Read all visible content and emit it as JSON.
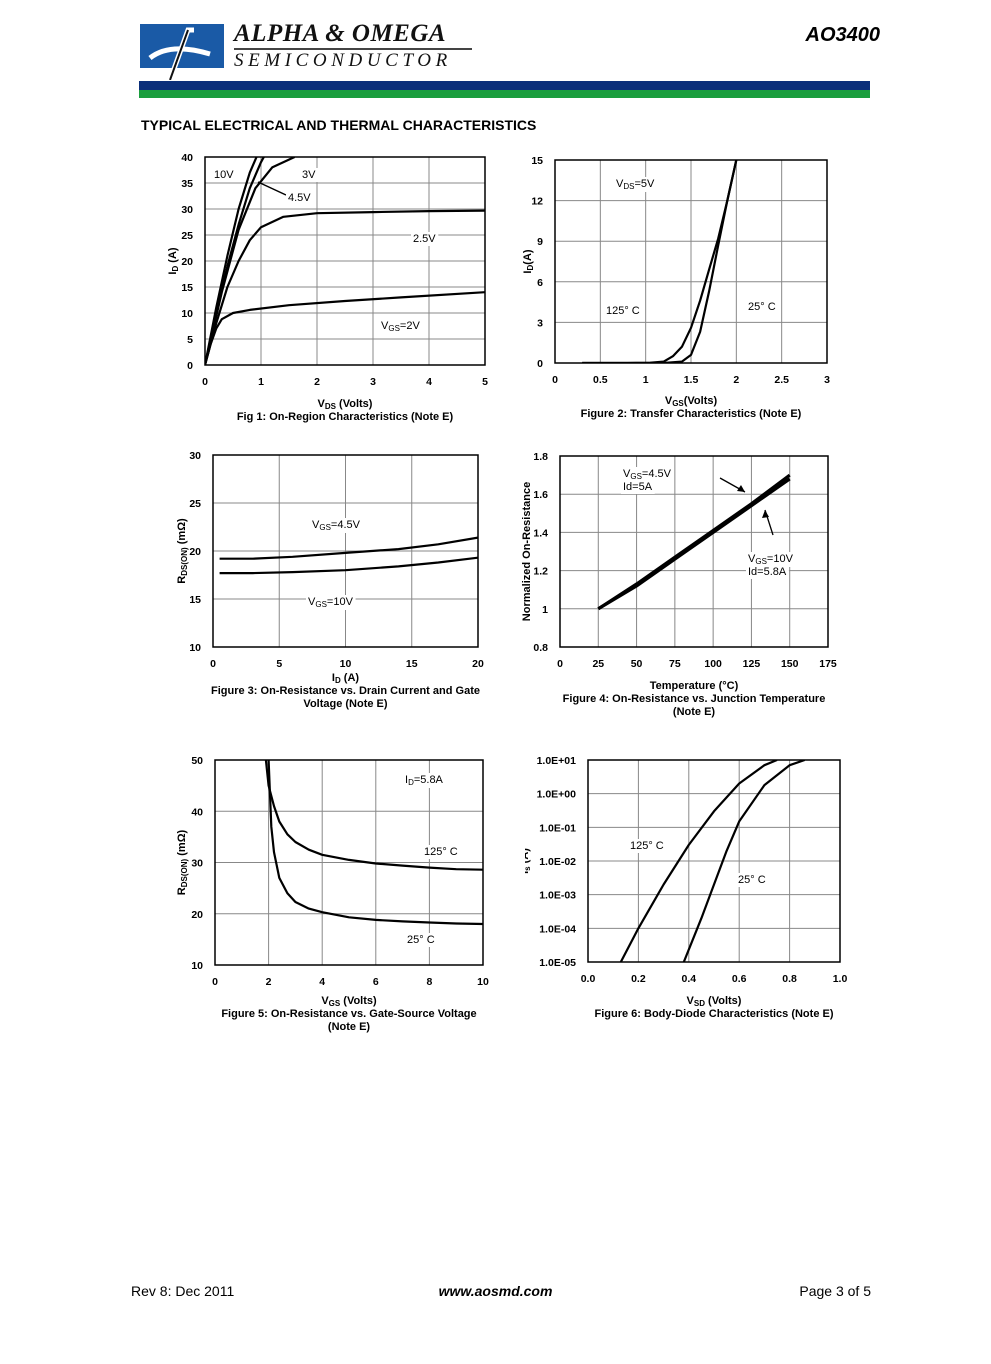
{
  "header": {
    "company_line1": "ALPHA & OMEGA",
    "company_line2": "SEMICONDUCTOR",
    "part_number": "AO3400",
    "colors": {
      "logo_blue": "#1a5aa6",
      "band_blue": "#0b2f7a",
      "band_green": "#1b9e3e"
    }
  },
  "section_title": "TYPICAL ELECTRICAL AND THERMAL CHARACTERISTICS",
  "footer": {
    "left": "Rev 8: Dec 2011",
    "center": "www.aosmd.com",
    "right": "Page 3 of 5"
  },
  "chart_data": [
    {
      "id": "fig1",
      "type": "line",
      "caption": "Fig 1: On-Region Characteristics (Note E)",
      "xlabel": "VDS (Volts)",
      "ylabel": "ID (A)",
      "xlim": [
        0,
        5
      ],
      "ylim": [
        0,
        40
      ],
      "xticks": [
        "0",
        "1",
        "2",
        "3",
        "4",
        "5"
      ],
      "yticks": [
        "0",
        "5",
        "10",
        "15",
        "20",
        "25",
        "30",
        "35",
        "40"
      ],
      "grid": true,
      "series": [
        {
          "name": "10V",
          "x": [
            0,
            0.2,
            0.4,
            0.6,
            0.8,
            1.0
          ],
          "y": [
            0,
            11,
            21,
            30,
            37,
            42
          ]
        },
        {
          "name": "3V",
          "x": [
            0,
            0.3,
            0.6,
            0.9,
            1.2,
            1.6
          ],
          "y": [
            0,
            14,
            26,
            34,
            38,
            40
          ]
        },
        {
          "name": "4.5V",
          "x": [
            0,
            0.2,
            0.4,
            0.6,
            0.8,
            1.0,
            1.1
          ],
          "y": [
            0,
            10,
            19,
            27,
            34,
            39,
            41
          ]
        },
        {
          "name": "2.5V",
          "x": [
            0,
            0.2,
            0.4,
            0.6,
            0.8,
            1.0,
            1.4,
            2,
            3,
            4,
            5
          ],
          "y": [
            0,
            8,
            15,
            20,
            24,
            26.5,
            28.5,
            29.2,
            29.4,
            29.6,
            29.7
          ]
        },
        {
          "name": "VGS=2V",
          "x": [
            0,
            0.1,
            0.2,
            0.3,
            0.5,
            0.8,
            1.5,
            2.5,
            3.5,
            5
          ],
          "y": [
            0,
            4,
            7,
            8.8,
            10,
            10.6,
            11.5,
            12.3,
            13,
            14
          ]
        }
      ],
      "annotations": [
        "10V",
        "3V",
        "4.5V",
        "2.5V",
        "VGS=2V"
      ]
    },
    {
      "id": "fig2",
      "type": "line",
      "caption": "Figure 2: Transfer Characteristics (Note E)",
      "xlabel": "VGS(Volts)",
      "ylabel": "ID(A)",
      "xlim": [
        0,
        3
      ],
      "ylim": [
        0,
        15
      ],
      "xticks": [
        "0",
        "0.5",
        "1",
        "1.5",
        "2",
        "2.5",
        "3"
      ],
      "yticks": [
        "0",
        "3",
        "6",
        "9",
        "12",
        "15"
      ],
      "grid": true,
      "series": [
        {
          "name": "125° C",
          "x": [
            0.3,
            0.8,
            1.05,
            1.2,
            1.3,
            1.4,
            1.5,
            1.6,
            1.7,
            1.8,
            1.9,
            2.0
          ],
          "y": [
            0,
            0,
            0.02,
            0.1,
            0.5,
            1.2,
            2.6,
            4.6,
            6.9,
            9.2,
            12,
            15
          ]
        },
        {
          "name": "25° C",
          "x": [
            0.3,
            1.2,
            1.4,
            1.5,
            1.6,
            1.7,
            1.8,
            1.9,
            2.0
          ],
          "y": [
            0,
            0,
            0.1,
            0.6,
            2.3,
            5.3,
            8.7,
            12,
            15
          ]
        }
      ],
      "annotations": [
        "VDS=5V",
        "125° C",
        "25° C"
      ]
    },
    {
      "id": "fig3",
      "type": "line",
      "caption": "Figure 3: On-Resistance vs. Drain Current and Gate Voltage (Note E)",
      "xlabel": "ID (A)",
      "ylabel": "RDS(ON) (mΩ)",
      "xlim": [
        0,
        20
      ],
      "ylim": [
        10,
        30
      ],
      "xticks": [
        "0",
        "5",
        "10",
        "15",
        "20"
      ],
      "yticks": [
        "10",
        "15",
        "20",
        "25",
        "30"
      ],
      "grid": true,
      "series": [
        {
          "name": "VGS=4.5V",
          "x": [
            0.5,
            3,
            6,
            10,
            14,
            17,
            20
          ],
          "y": [
            19.2,
            19.2,
            19.4,
            19.8,
            20.2,
            20.7,
            21.4
          ]
        },
        {
          "name": "VGS=10V",
          "x": [
            0.5,
            3,
            6,
            10,
            14,
            17,
            20
          ],
          "y": [
            17.7,
            17.7,
            17.8,
            18.0,
            18.4,
            18.8,
            19.3
          ]
        }
      ],
      "annotations": [
        "VGS=4.5V",
        "VGS=10V"
      ]
    },
    {
      "id": "fig4",
      "type": "line",
      "caption": "Figure 4: On-Resistance vs. Junction Temperature (Note E)",
      "xlabel": "Temperature (°C)",
      "ylabel": "Normalized On-Resistance",
      "xlim": [
        0,
        175
      ],
      "ylim": [
        0.8,
        1.8
      ],
      "xticks": [
        "0",
        "25",
        "50",
        "75",
        "100",
        "125",
        "150",
        "175"
      ],
      "yticks": [
        "0.8",
        "1",
        "1.2",
        "1.4",
        "1.6",
        "1.8"
      ],
      "grid": true,
      "series": [
        {
          "name": "VGS=4.5V Id=5A",
          "x": [
            25,
            50,
            75,
            100,
            125,
            150
          ],
          "y": [
            1.0,
            1.13,
            1.27,
            1.41,
            1.55,
            1.7
          ]
        },
        {
          "name": "VGS=10V Id=5.8A",
          "x": [
            25,
            50,
            75,
            100,
            125,
            150
          ],
          "y": [
            1.0,
            1.12,
            1.26,
            1.4,
            1.54,
            1.68
          ]
        }
      ],
      "annotations": [
        "VGS=4.5V",
        "Id=5A",
        "VGS=10V",
        "Id=5.8A"
      ]
    },
    {
      "id": "fig5",
      "type": "line",
      "caption": "Figure 5: On-Resistance vs. Gate-Source Voltage (Note E)",
      "xlabel": "VGS (Volts)",
      "ylabel": "RDS(ON) (mΩ)",
      "xlim": [
        0,
        10
      ],
      "ylim": [
        10,
        50
      ],
      "xticks": [
        "0",
        "2",
        "4",
        "6",
        "8",
        "10"
      ],
      "yticks": [
        "10",
        "20",
        "30",
        "40",
        "50"
      ],
      "grid": true,
      "series": [
        {
          "name": "125° C",
          "x": [
            1.9,
            2.0,
            2.2,
            2.4,
            2.7,
            3,
            3.5,
            4,
            5,
            6,
            7,
            8,
            9,
            10
          ],
          "y": [
            50,
            45,
            41,
            38,
            35.5,
            34,
            32.5,
            31.5,
            30.5,
            29.8,
            29.4,
            29,
            28.7,
            28.6
          ]
        },
        {
          "name": "25° C",
          "x": [
            2.0,
            2.1,
            2.2,
            2.4,
            2.7,
            3,
            3.5,
            4,
            5,
            6,
            7,
            8,
            9,
            10
          ],
          "y": [
            50,
            37,
            32,
            27,
            24,
            22.3,
            21,
            20.3,
            19.3,
            18.8,
            18.5,
            18.3,
            18.1,
            18
          ]
        }
      ],
      "annotations": [
        "ID=5.8A",
        "125° C",
        "25° C"
      ]
    },
    {
      "id": "fig6",
      "type": "line",
      "caption": "Figure 6: Body-Diode Characteristics (Note E)",
      "xlabel": "VSD (Volts)",
      "ylabel": "Is (A)",
      "xlim": [
        0,
        1.0
      ],
      "ylim": [
        1e-05,
        10
      ],
      "yscale": "log",
      "xticks": [
        "0.0",
        "0.2",
        "0.4",
        "0.6",
        "0.8",
        "1.0"
      ],
      "yticks": [
        "1.0E-05",
        "1.0E-04",
        "1.0E-03",
        "1.0E-02",
        "1.0E-01",
        "1.0E+00",
        "1.0E+01"
      ],
      "grid": true,
      "series": [
        {
          "name": "125° C",
          "x": [
            0.13,
            0.2,
            0.3,
            0.4,
            0.5,
            0.6,
            0.7,
            0.75
          ],
          "y": [
            1e-05,
            0.0001,
            0.002,
            0.03,
            0.3,
            2,
            7,
            10
          ]
        },
        {
          "name": "25° C",
          "x": [
            0.38,
            0.45,
            0.5,
            0.55,
            0.6,
            0.7,
            0.8,
            0.86
          ],
          "y": [
            1e-05,
            0.0002,
            0.002,
            0.02,
            0.15,
            1.8,
            7,
            10
          ]
        }
      ],
      "annotations": [
        "125° C",
        "25° C"
      ]
    }
  ]
}
